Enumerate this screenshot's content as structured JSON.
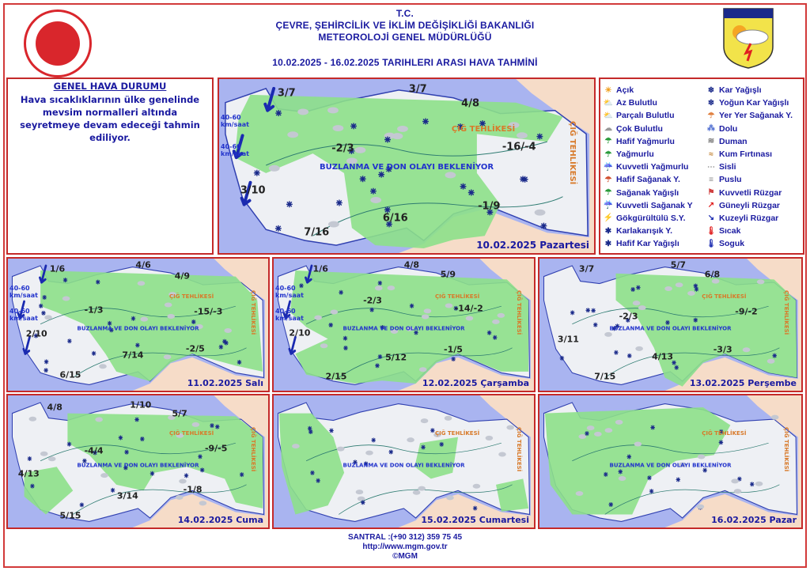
{
  "header": {
    "line1": "T.C.",
    "line2": "ÇEVRE, ŞEHİRCİLİK VE İKLİM DEĞİŞİKLİĞİ BAKANLIĞI",
    "line3": "METEOROLOJİ  GENEL  MÜDÜRLÜĞÜ",
    "line4": "10.02.2025  -  16.02.2025    TARIHLERI  ARASI  HAVA  TAHMİNİ",
    "logo_text": "METEOROLOJİ"
  },
  "general": {
    "title": "GENEL HAVA DURUMU",
    "text": "Hava sıcaklıklarının ülke genelinde mevsim normalleri altında seyretmeye devam edeceği tahmin ediliyor."
  },
  "legend": {
    "left": [
      {
        "icon": "sun-icon",
        "label": "Açık"
      },
      {
        "icon": "sun-cloud-icon",
        "label": "Az Bulutlu"
      },
      {
        "icon": "partly-cloudy-icon",
        "label": "Parçalı Bulutlu"
      },
      {
        "icon": "cloudy-icon",
        "label": "Çok Bulutlu"
      },
      {
        "icon": "light-rain-icon",
        "label": "Hafif Yağmurlu"
      },
      {
        "icon": "rain-icon",
        "label": "Yağmurlu"
      },
      {
        "icon": "heavy-rain-icon",
        "label": "Kuvvetli Yağmurlu"
      },
      {
        "icon": "light-shower-icon",
        "label": "Hafif Sağanak Y."
      },
      {
        "icon": "shower-icon",
        "label": "Sağanak Yağışlı"
      },
      {
        "icon": "heavy-shower-icon",
        "label": "Kuvvetli Sağanak Y"
      },
      {
        "icon": "thunderstorm-icon",
        "label": "Gökgürültülü S.Y."
      },
      {
        "icon": "sleet-icon",
        "label": "Karlakarışık Y."
      },
      {
        "icon": "light-snow-icon",
        "label": "Hafif Kar Yağışlı"
      }
    ],
    "right": [
      {
        "icon": "snow-icon",
        "label": "Kar Yağışlı"
      },
      {
        "icon": "heavy-snow-icon",
        "label": "Yoğun Kar Yağışlı"
      },
      {
        "icon": "local-shower-icon",
        "label": "Yer Yer Sağanak Y."
      },
      {
        "icon": "hail-icon",
        "label": "Dolu"
      },
      {
        "icon": "smoke-icon",
        "label": "Duman"
      },
      {
        "icon": "sandstorm-icon",
        "label": "Kum Fırtınası"
      },
      {
        "icon": "fog-icon",
        "label": "Sisli"
      },
      {
        "icon": "mist-icon",
        "label": "Puslu"
      },
      {
        "icon": "strong-wind-icon",
        "label": "Kuvvetli Rüzgar"
      },
      {
        "icon": "south-wind-arrow-icon",
        "label": "Güneyli Rüzgar"
      },
      {
        "icon": "north-wind-arrow-icon",
        "label": "Kuzeyli Rüzgar"
      },
      {
        "icon": "hot-thermometer-icon",
        "label": "Sıcak"
      },
      {
        "icon": "cold-thermometer-icon",
        "label": "Soguk"
      }
    ]
  },
  "map_labels": {
    "icing": "BUZLANMA VE DON OLAYI BEKLENİYOR",
    "avalanche": "ÇIĞ TEHLİKESİ",
    "wind": "40-60 km/saat"
  },
  "maps": [
    {
      "date": "10.02.2025 Pazartesi",
      "temps": [
        "3/7",
        "3/7",
        "4/8",
        "-2/3",
        "-16/-4",
        "3/10",
        "6/16",
        "-1/9",
        "7/16"
      ]
    },
    {
      "date": "11.02.2025 Salı",
      "temps": [
        "1/6",
        "4/6",
        "4/9",
        "-1/3",
        "-15/-3",
        "2/10",
        "-2/5",
        "7/14",
        "6/15"
      ]
    },
    {
      "date": "12.02.2025 Çarşamba",
      "temps": [
        "1/6",
        "4/8",
        "5/9",
        "-2/3",
        "-14/-2",
        "2/10",
        "-1/5",
        "5/12",
        "2/15"
      ]
    },
    {
      "date": "13.02.2025 Perşembe",
      "temps": [
        "3/7",
        "5/7",
        "6/8",
        "-2/3",
        "-9/-2",
        "3/11",
        "-3/3",
        "4/13",
        "7/15"
      ]
    },
    {
      "date": "14.02.2025 Cuma",
      "temps": [
        "4/8",
        "1/10",
        "5/7",
        "-4/4",
        "-9/-5",
        "4/13",
        "-1/8",
        "3/14",
        "5/15"
      ]
    },
    {
      "date": "15.02.2025 Cumartesi",
      "temps": []
    },
    {
      "date": "16.02.2025 Pazar",
      "temps": []
    }
  ],
  "footer": {
    "phone": "SANTRAL :(+90 312) 359 75 45",
    "url": "http://www.mgm.gov.tr",
    "copyright": "©MGM"
  },
  "colors": {
    "frame": "#c42a2a",
    "text": "#1a1aa0",
    "sea": "#a9b4f0",
    "land": "#eef0f4",
    "neighbor": "#f6dcc8",
    "icing_zone": "#8de08a"
  }
}
